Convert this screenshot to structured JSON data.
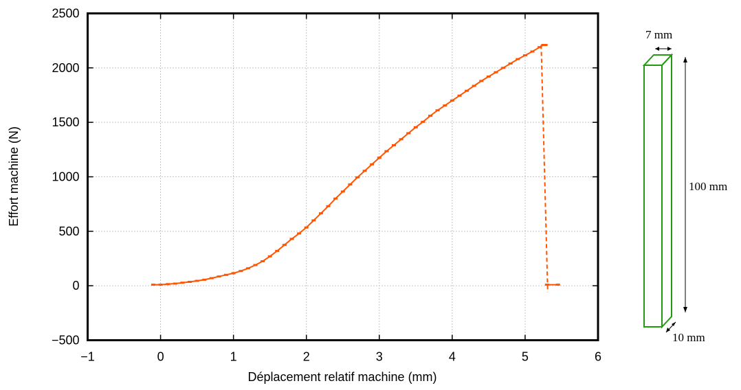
{
  "chart_data": {
    "type": "line",
    "title": "",
    "xlabel": "Déplacement relatif machine (mm)",
    "ylabel": "Effort machine (N)",
    "xlim": [
      -1,
      6
    ],
    "ylim": [
      -500,
      2500
    ],
    "xticks": [
      -1,
      0,
      1,
      2,
      3,
      4,
      5,
      6
    ],
    "yticks": [
      -500,
      0,
      500,
      1000,
      1500,
      2000,
      2500
    ],
    "xtick_labels": [
      "−1",
      "0",
      "1",
      "2",
      "3",
      "4",
      "5",
      "6"
    ],
    "ytick_labels": [
      "−500",
      "0",
      "500",
      "1000",
      "1500",
      "2000",
      "2500"
    ],
    "grid": true,
    "legend": "none",
    "series": [
      {
        "color": "#ff5500",
        "x": [
          -0.1,
          0.0,
          0.1,
          0.2,
          0.3,
          0.4,
          0.5,
          0.6,
          0.7,
          0.8,
          0.9,
          1.0,
          1.1,
          1.2,
          1.3,
          1.4,
          1.5,
          1.6,
          1.7,
          1.8,
          1.9,
          2.0,
          2.1,
          2.2,
          2.3,
          2.4,
          2.5,
          2.6,
          2.7,
          2.8,
          2.9,
          3.0,
          3.1,
          3.2,
          3.3,
          3.4,
          3.5,
          3.6,
          3.7,
          3.8,
          3.9,
          4.0,
          4.1,
          4.2,
          4.3,
          4.4,
          4.5,
          4.6,
          4.7,
          4.8,
          4.9,
          5.0,
          5.1,
          5.2,
          5.25,
          5.28
        ],
        "y": [
          10,
          10,
          15,
          20,
          28,
          36,
          45,
          55,
          70,
          85,
          100,
          115,
          135,
          160,
          190,
          225,
          270,
          320,
          375,
          430,
          480,
          535,
          600,
          665,
          730,
          800,
          865,
          930,
          995,
          1055,
          1115,
          1175,
          1235,
          1290,
          1345,
          1400,
          1455,
          1505,
          1560,
          1610,
          1655,
          1700,
          1745,
          1790,
          1835,
          1880,
          1920,
          1960,
          2000,
          2040,
          2080,
          2115,
          2150,
          2190,
          2210,
          2210
        ]
      },
      {
        "color": "#ff5500",
        "style": "dashed",
        "x": [
          5.22,
          5.31
        ],
        "y": [
          2210,
          -60
        ]
      },
      {
        "color": "#ff5500",
        "x": [
          5.3,
          5.45
        ],
        "y": [
          10,
          10
        ]
      }
    ]
  },
  "specimen": {
    "width_label": "7 mm",
    "height_label": "100 mm",
    "depth_label": "10 mm",
    "color": "#229911"
  }
}
